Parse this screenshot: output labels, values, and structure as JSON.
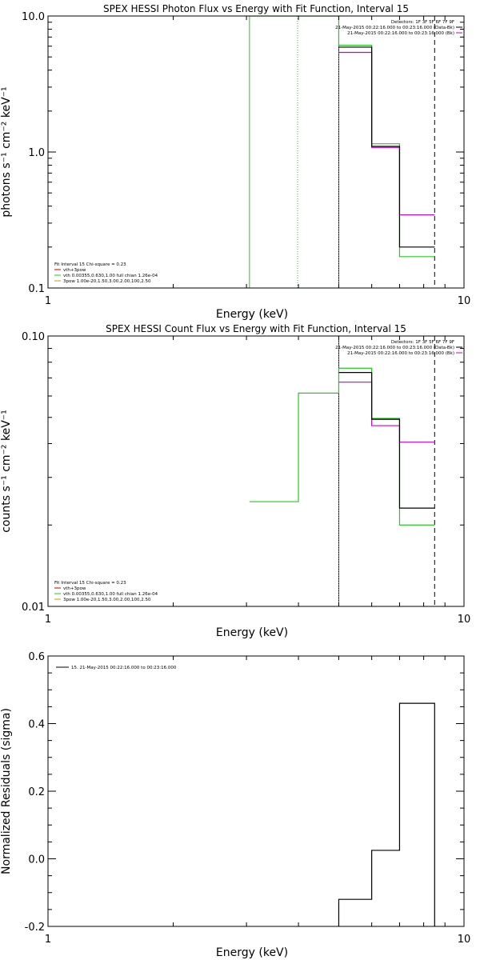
{
  "colors": {
    "black": "#000000",
    "magenta": "#cc00cc",
    "green": "#22cc22",
    "red": "#cc0000",
    "orange": "#cc9900"
  },
  "chart_data": [
    {
      "type": "line",
      "title": "SPEX HESSI Photon Flux vs Energy with Fit Function, Interval 15",
      "xlabel": "Energy (keV)",
      "ylabel": "photons s⁻¹ cm⁻² keV⁻¹",
      "xscale": "log",
      "yscale": "log",
      "xlim": [
        1,
        10
      ],
      "ylim": [
        0.1,
        10
      ],
      "xticks": [
        {
          "v": 1,
          "label": "1"
        },
        {
          "v": 10,
          "label": "10"
        }
      ],
      "yticks": [
        {
          "v": 0.1,
          "label": "0.1"
        },
        {
          "v": 1,
          "label": "1.0"
        },
        {
          "v": 10,
          "label": "10.0"
        }
      ],
      "vlines": [
        {
          "x": 3.05,
          "color": "green",
          "dash": "none"
        },
        {
          "x": 3.98,
          "color": "green",
          "dash": "1,2"
        },
        {
          "x": 5.0,
          "color": "magenta",
          "dash": "none"
        },
        {
          "x": 5.0,
          "color": "black",
          "dash": "1,2"
        },
        {
          "x": 8.5,
          "color": "black",
          "dash": "6,4"
        }
      ],
      "series": [
        {
          "name": "",
          "color": "green",
          "edges": [
            3.05,
            5.0,
            6.0,
            7.0,
            8.5
          ],
          "values": [
            30,
            6.1,
            1.15,
            0.17
          ]
        },
        {
          "name": "",
          "color": "magenta",
          "edges": [
            5.0,
            6.0,
            7.0,
            8.5
          ],
          "values": [
            5.4,
            1.08,
            0.345
          ]
        },
        {
          "name": "",
          "color": "black",
          "edges": [
            5.0,
            6.0,
            7.0,
            8.5
          ],
          "values": [
            5.9,
            1.1,
            0.2
          ]
        }
      ],
      "legend_right": [
        {
          "text": "Detectors: 1F 3F 5F 6F 7F 9F",
          "color": ""
        },
        {
          "text": "21-May-2015 00:22:16.000 to 00:23:16.000 (Data-Bk)",
          "color": "black"
        },
        {
          "text": "21-May-2015 00:22:16.000 to 00:23:16.000 (Bk)",
          "color": "magenta"
        }
      ],
      "legend_left": [
        {
          "text": "Fit Interval 15   Chi-square = 0.23",
          "color": ""
        },
        {
          "text": "vth+3pow",
          "color": "red"
        },
        {
          "text": "vth 0.00355,0.630,1.00   full chian 1.26e-04",
          "color": "green"
        },
        {
          "text": "3pow 1.00e-20,1.50,3.00,2.00,100,2.50",
          "color": "orange"
        }
      ]
    },
    {
      "type": "line",
      "title": "SPEX HESSI Count Flux vs Energy with Fit Function, Interval 15",
      "xlabel": "Energy (keV)",
      "ylabel": "counts s⁻¹ cm⁻² keV⁻¹",
      "xscale": "log",
      "yscale": "log",
      "xlim": [
        1,
        10
      ],
      "ylim": [
        0.01,
        0.1
      ],
      "xticks": [
        {
          "v": 1,
          "label": "1"
        },
        {
          "v": 10,
          "label": "10"
        }
      ],
      "yticks": [
        {
          "v": 0.01,
          "label": "0.01"
        },
        {
          "v": 0.1,
          "label": "0.10"
        }
      ],
      "vlines": [
        {
          "x": 5.0,
          "color": "magenta",
          "dash": "none"
        },
        {
          "x": 5.0,
          "color": "black",
          "dash": "1,2"
        },
        {
          "x": 8.5,
          "color": "black",
          "dash": "6,4"
        }
      ],
      "series": [
        {
          "name": "",
          "color": "green",
          "edges": [
            3.05,
            4.0,
            5.0,
            6.0,
            7.0,
            8.5
          ],
          "values": [
            0.0244,
            0.0615,
            0.076,
            0.0496,
            0.02
          ]
        },
        {
          "name": "",
          "color": "magenta",
          "edges": [
            5.0,
            6.0,
            7.0,
            8.5
          ],
          "values": [
            0.0675,
            0.0466,
            0.0405
          ]
        },
        {
          "name": "",
          "color": "black",
          "edges": [
            5.0,
            6.0,
            7.0,
            8.5
          ],
          "values": [
            0.0733,
            0.0492,
            0.0231
          ]
        }
      ],
      "legend_right": [
        {
          "text": "Detectors: 1F 3F 5F 6F 7F 9F",
          "color": ""
        },
        {
          "text": "21-May-2015 00:22:16.000 to 00:23:16.000 (Data-Bk)",
          "color": "black"
        },
        {
          "text": "21-May-2015 00:22:16.000 to 00:23:16.000 (Bk)",
          "color": "magenta"
        }
      ],
      "legend_left": [
        {
          "text": "Fit Interval 15   Chi-square = 0.23",
          "color": ""
        },
        {
          "text": "vth+3pow",
          "color": "red"
        },
        {
          "text": "vth 0.00355,0.630,1.00   full chian 1.26e-04",
          "color": "green"
        },
        {
          "text": "3pow 1.00e-20,1.50,3.00,2.00,100,2.50",
          "color": "orange"
        }
      ]
    },
    {
      "type": "line",
      "title": "",
      "xlabel": "Energy (keV)",
      "ylabel": "Normalized Residuals (sigma)",
      "xscale": "log",
      "yscale": "linear",
      "xlim": [
        1,
        10
      ],
      "ylim": [
        -0.2,
        0.6
      ],
      "xticks": [
        {
          "v": 1,
          "label": "1"
        },
        {
          "v": 10,
          "label": "10"
        }
      ],
      "yticks": [
        {
          "v": -0.2,
          "label": "-0.2"
        },
        {
          "v": 0.0,
          "label": "0.0"
        },
        {
          "v": 0.2,
          "label": "0.2"
        },
        {
          "v": 0.4,
          "label": "0.4"
        },
        {
          "v": 0.6,
          "label": "0.6"
        }
      ],
      "vlines": [],
      "series": [
        {
          "name": "15. 21-May-2015 00:22:16.000 to 00:23:16.000",
          "color": "black",
          "edges": [
            5.0,
            6.0,
            7.0,
            8.5
          ],
          "values": [
            -0.12,
            0.025,
            0.46
          ],
          "drop_to_axis": true
        }
      ],
      "legend_right": [],
      "legend_left": []
    }
  ]
}
